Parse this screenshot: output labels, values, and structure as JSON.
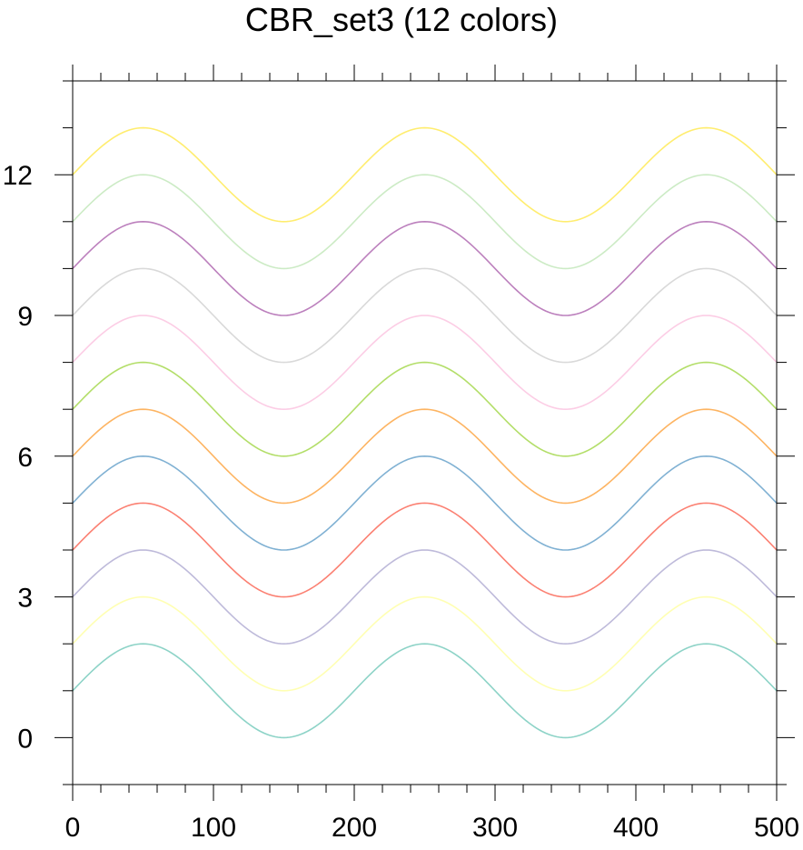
{
  "chart_data": {
    "type": "line",
    "title": "CBR_set3 (12 colors)",
    "xlabel": "",
    "ylabel": "",
    "xlim": [
      0,
      500
    ],
    "ylim": [
      -1,
      14
    ],
    "x_ticks": [
      0,
      100,
      200,
      300,
      400,
      500
    ],
    "y_ticks": [
      0,
      3,
      6,
      9,
      12
    ],
    "grid": false,
    "curve": "y = 1 + sin(2π·x/200) + offset",
    "series": [
      {
        "offset": 0,
        "color": "#8dd3c7",
        "x": [
          0,
          50,
          100,
          150,
          200,
          250,
          300,
          350,
          400,
          450,
          500
        ],
        "values": [
          1,
          2,
          1,
          0,
          1,
          2,
          1,
          0,
          1,
          2,
          1
        ]
      },
      {
        "offset": 1,
        "color": "#ffffb3",
        "x": [
          0,
          50,
          100,
          150,
          200,
          250,
          300,
          350,
          400,
          450,
          500
        ],
        "values": [
          2,
          3,
          2,
          1,
          2,
          3,
          2,
          1,
          2,
          3,
          2
        ]
      },
      {
        "offset": 2,
        "color": "#bebada",
        "x": [
          0,
          50,
          100,
          150,
          200,
          250,
          300,
          350,
          400,
          450,
          500
        ],
        "values": [
          3,
          4,
          3,
          2,
          3,
          4,
          3,
          2,
          3,
          4,
          3
        ]
      },
      {
        "offset": 3,
        "color": "#fb8072",
        "x": [
          0,
          50,
          100,
          150,
          200,
          250,
          300,
          350,
          400,
          450,
          500
        ],
        "values": [
          4,
          5,
          4,
          3,
          4,
          5,
          4,
          3,
          4,
          5,
          4
        ]
      },
      {
        "offset": 4,
        "color": "#80b1d3",
        "x": [
          0,
          50,
          100,
          150,
          200,
          250,
          300,
          350,
          400,
          450,
          500
        ],
        "values": [
          5,
          6,
          5,
          4,
          5,
          6,
          5,
          4,
          5,
          6,
          5
        ]
      },
      {
        "offset": 5,
        "color": "#fdb462",
        "x": [
          0,
          50,
          100,
          150,
          200,
          250,
          300,
          350,
          400,
          450,
          500
        ],
        "values": [
          6,
          7,
          6,
          5,
          6,
          7,
          6,
          5,
          6,
          7,
          6
        ]
      },
      {
        "offset": 6,
        "color": "#b3de69",
        "x": [
          0,
          50,
          100,
          150,
          200,
          250,
          300,
          350,
          400,
          450,
          500
        ],
        "values": [
          7,
          8,
          7,
          6,
          7,
          8,
          7,
          6,
          7,
          8,
          7
        ]
      },
      {
        "offset": 7,
        "color": "#fccde5",
        "x": [
          0,
          50,
          100,
          150,
          200,
          250,
          300,
          350,
          400,
          450,
          500
        ],
        "values": [
          8,
          9,
          8,
          7,
          8,
          9,
          8,
          7,
          8,
          9,
          8
        ]
      },
      {
        "offset": 8,
        "color": "#d9d9d9",
        "x": [
          0,
          50,
          100,
          150,
          200,
          250,
          300,
          350,
          400,
          450,
          500
        ],
        "values": [
          9,
          10,
          9,
          8,
          9,
          10,
          9,
          8,
          9,
          10,
          9
        ]
      },
      {
        "offset": 9,
        "color": "#bc80bd",
        "x": [
          0,
          50,
          100,
          150,
          200,
          250,
          300,
          350,
          400,
          450,
          500
        ],
        "values": [
          10,
          11,
          10,
          9,
          10,
          11,
          10,
          9,
          10,
          11,
          10
        ]
      },
      {
        "offset": 10,
        "color": "#ccebc5",
        "x": [
          0,
          50,
          100,
          150,
          200,
          250,
          300,
          350,
          400,
          450,
          500
        ],
        "values": [
          11,
          12,
          11,
          10,
          11,
          12,
          11,
          10,
          11,
          12,
          11
        ]
      },
      {
        "offset": 11,
        "color": "#ffed6f",
        "x": [
          0,
          50,
          100,
          150,
          200,
          250,
          300,
          350,
          400,
          450,
          500
        ],
        "values": [
          12,
          13,
          12,
          11,
          12,
          13,
          12,
          11,
          12,
          13,
          12
        ]
      }
    ]
  }
}
